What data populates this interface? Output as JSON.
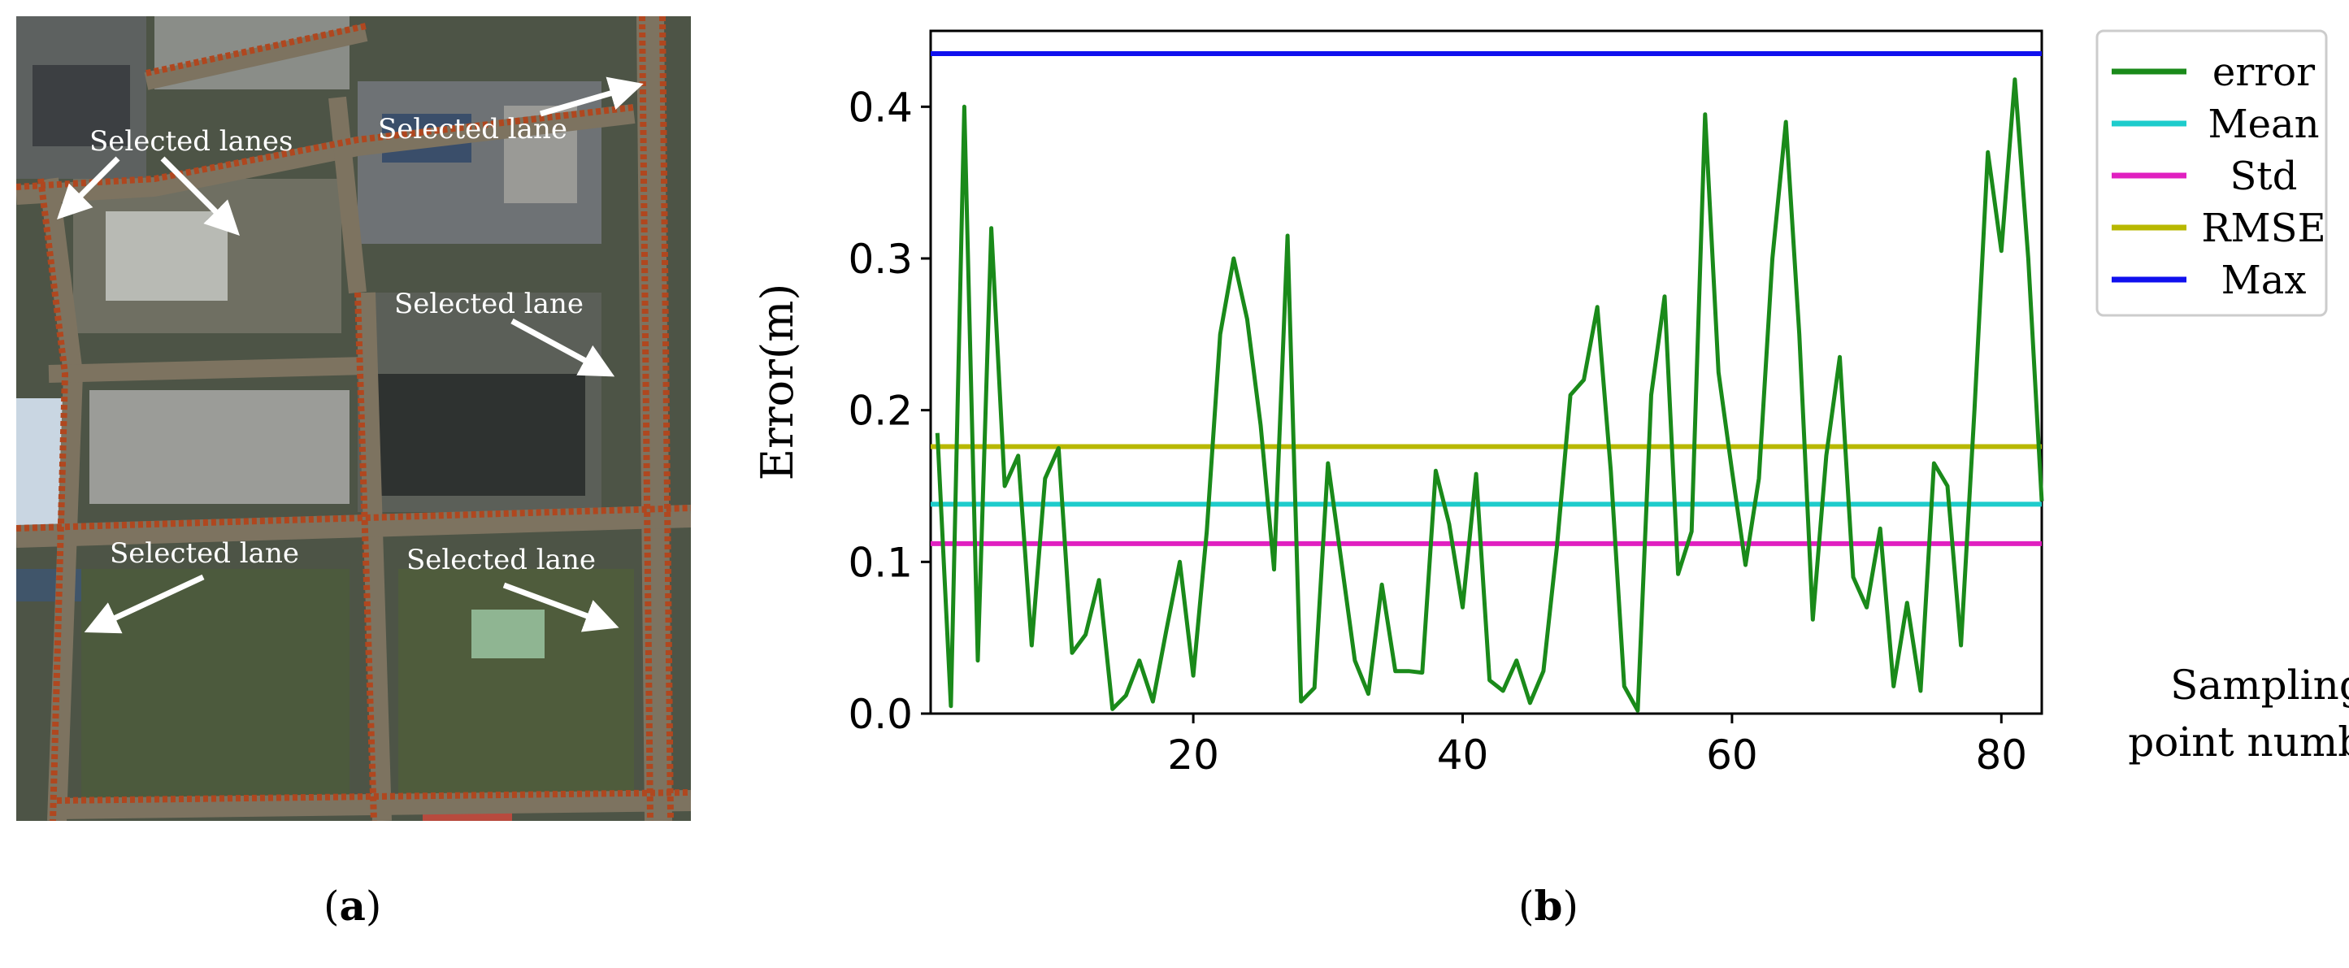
{
  "panel_a": {
    "caption_open": "(",
    "caption_letter": "a",
    "caption_close": ")",
    "annotations": [
      "Selected lanes",
      "Selected lane",
      "Selected lane",
      "Selected lane",
      "Selected lane"
    ]
  },
  "panel_b": {
    "caption_open": "(",
    "caption_letter": "b",
    "caption_close": ")"
  },
  "chart_data": {
    "type": "line",
    "title": "",
    "xlabel": "Sampling point number",
    "ylabel": "Error(m)",
    "xlim": [
      0.5,
      83
    ],
    "ylim": [
      0,
      0.45
    ],
    "xticks": [
      20,
      40,
      60,
      80
    ],
    "yticks": [
      0.0,
      0.1,
      0.2,
      0.3,
      0.4
    ],
    "ytick_labels": [
      "0.0",
      "0.1",
      "0.2",
      "0.3",
      "0.4"
    ],
    "grid": false,
    "legend_position": "outside-right",
    "series": [
      {
        "name": "error",
        "color": "#1a8a1a",
        "x": [
          1,
          2,
          3,
          4,
          5,
          6,
          7,
          8,
          9,
          10,
          11,
          12,
          13,
          14,
          15,
          16,
          17,
          18,
          19,
          20,
          21,
          22,
          23,
          24,
          25,
          26,
          27,
          28,
          29,
          30,
          31,
          32,
          33,
          34,
          35,
          36,
          37,
          38,
          39,
          40,
          41,
          42,
          43,
          44,
          45,
          46,
          47,
          48,
          49,
          50,
          51,
          52,
          53,
          54,
          55,
          56,
          57,
          58,
          59,
          60,
          61,
          62,
          63,
          64,
          65,
          66,
          67,
          68,
          69,
          70,
          71,
          72,
          73,
          74,
          75,
          76,
          77,
          78,
          79,
          80,
          81,
          82,
          83
        ],
        "y": [
          0.185,
          0.005,
          0.4,
          0.035,
          0.32,
          0.15,
          0.17,
          0.045,
          0.155,
          0.175,
          0.04,
          0.052,
          0.088,
          0.003,
          0.012,
          0.035,
          0.008,
          0.055,
          0.1,
          0.025,
          0.12,
          0.25,
          0.3,
          0.26,
          0.19,
          0.095,
          0.315,
          0.008,
          0.017,
          0.165,
          0.1,
          0.035,
          0.013,
          0.085,
          0.028,
          0.028,
          0.027,
          0.16,
          0.125,
          0.07,
          0.158,
          0.022,
          0.015,
          0.035,
          0.007,
          0.028,
          0.11,
          0.21,
          0.22,
          0.268,
          0.16,
          0.018,
          0.002,
          0.21,
          0.275,
          0.092,
          0.12,
          0.395,
          0.225,
          0.16,
          0.098,
          0.155,
          0.3,
          0.39,
          0.25,
          0.062,
          0.17,
          0.235,
          0.09,
          0.07,
          0.122,
          0.018,
          0.073,
          0.015,
          0.165,
          0.15,
          0.045,
          0.2,
          0.37,
          0.305,
          0.418,
          0.3,
          0.14
        ]
      },
      {
        "name": "Mean",
        "color": "#1ecccc",
        "constant": 0.138
      },
      {
        "name": "Std",
        "color": "#e020c0",
        "constant": 0.112
      },
      {
        "name": "RMSE",
        "color": "#b8b800",
        "constant": 0.176
      },
      {
        "name": "Max",
        "color": "#1010ee",
        "constant": 0.435
      }
    ]
  }
}
